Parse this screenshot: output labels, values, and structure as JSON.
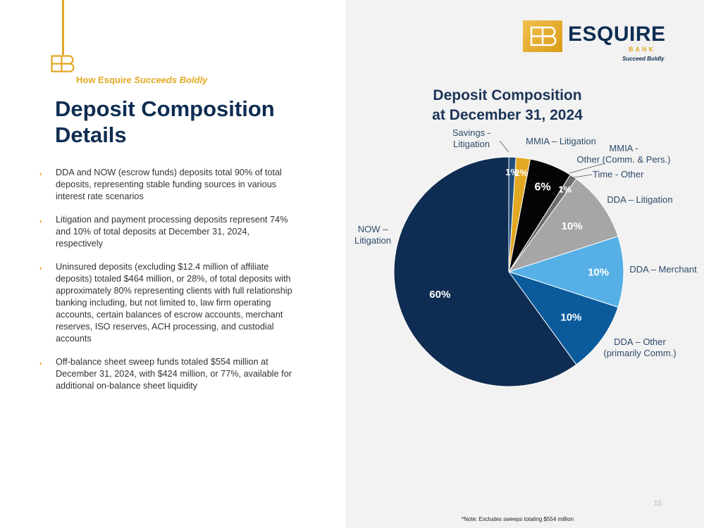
{
  "slide": {
    "kicker_prefix": "How Esquire",
    "kicker_emphasis": "Succeeds Boldly",
    "title_line1": "Deposit Composition",
    "title_line2": "Details",
    "bullets": [
      "DDA and NOW (escrow funds) deposits total 90% of total deposits, representing stable funding sources in various interest rate scenarios",
      "Litigation and payment processing deposits represent 74% and 10% of total deposits at December 31, 2024, respectively",
      "Uninsured deposits (excluding $12.4 million of affiliate deposits) totaled $464 million, or 28%, of total deposits with approximately 80% representing clients with full relationship banking including, but not limited to, law firm operating accounts, certain balances of escrow accounts, merchant reserves, ISO reserves, ACH processing, and custodial accounts",
      "Off-balance sheet sweep funds totaled $554 million at December 31, 2024, with $424 million, or 77%, available for additional on-balance sheet liquidity"
    ],
    "page_number": "15",
    "footnote": "*Note: Excludes sweeps totaling $554 million"
  },
  "logo": {
    "name": "ESQUIRE",
    "bank": "BANK",
    "tagline": "Succeed Boldly"
  },
  "colors": {
    "navy": "#0f2d52",
    "gold": "#e3a823",
    "panel": "#f2f2f2"
  },
  "chart_data": {
    "type": "pie",
    "title_line1": "Deposit Composition",
    "title_line2": "at December 31, 2024",
    "slices": [
      {
        "label_lines": [
          "Savings -",
          "Litigation"
        ],
        "value": 1,
        "value_label": "1%",
        "color": "#1f4e79"
      },
      {
        "label_lines": [
          "MMIA – Litigation"
        ],
        "value": 2,
        "value_label": "2%",
        "color": "#e3a823"
      },
      {
        "label_lines": [
          "MMIA -",
          "Other (Comm. & Pers.)"
        ],
        "value": 6,
        "value_label": "6%",
        "color": "#050505"
      },
      {
        "label_lines": [
          "Time - Other"
        ],
        "value": 1,
        "value_label": "1%",
        "color": "#6d6d6d"
      },
      {
        "label_lines": [
          "DDA – Litigation"
        ],
        "value": 10,
        "value_label": "10%",
        "color": "#a6a6a6"
      },
      {
        "label_lines": [
          "DDA – Merchant"
        ],
        "value": 10,
        "value_label": "10%",
        "color": "#56b0e6"
      },
      {
        "label_lines": [
          "DDA – Other",
          "(primarily Comm.)"
        ],
        "value": 10,
        "value_label": "10%",
        "color": "#0b5b9c"
      },
      {
        "label_lines": [
          "NOW –",
          "Litigation"
        ],
        "value": 60,
        "value_label": "60%",
        "color": "#0f2d52"
      }
    ]
  }
}
